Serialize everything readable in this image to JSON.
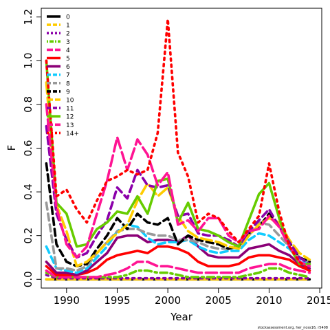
{
  "chart_data": {
    "type": "line",
    "xlabel": "Year",
    "ylabel": "F",
    "xlim": [
      1987.5,
      2015.2
    ],
    "ylim": [
      -0.04,
      1.24
    ],
    "x_ticks": [
      1990,
      1995,
      2000,
      2005,
      2010,
      2015
    ],
    "y_ticks": [
      0.0,
      0.2,
      0.4,
      0.6,
      0.8,
      1.0,
      1.2
    ],
    "x_tick_labels": [
      "1990",
      "1995",
      "2000",
      "2005",
      "2010",
      "2015"
    ],
    "y_tick_labels": [
      "0.0",
      "0.2",
      "0.4",
      "0.6",
      "0.8",
      "1.0",
      "1.2"
    ],
    "legend_position": "top-left",
    "credit": "stockassessment.org, her_noss16, r5408",
    "years": [
      1988,
      1989,
      1990,
      1991,
      1992,
      1993,
      1994,
      1995,
      1996,
      1997,
      1998,
      1999,
      2000,
      2001,
      2002,
      2003,
      2004,
      2005,
      2006,
      2007,
      2008,
      2009,
      2010,
      2011,
      2012,
      2013,
      2014
    ],
    "series": [
      {
        "name": "0",
        "color": "#000000",
        "dash": "solid",
        "values": [
          0.0,
          0.0,
          0.0,
          0.0,
          0.0,
          0.0,
          0.0,
          0.0,
          0.0,
          0.0,
          0.0,
          0.0,
          0.0,
          0.0,
          0.0,
          0.0,
          0.0,
          0.0,
          0.0,
          0.0,
          0.0,
          0.0,
          0.0,
          0.0,
          0.0,
          0.0,
          0.0
        ]
      },
      {
        "name": "1",
        "color": "#ffcc00",
        "dash": "dashed",
        "values": [
          0.0,
          0.0,
          0.0,
          0.0,
          0.0,
          0.0,
          0.0,
          0.0,
          0.0,
          0.0,
          0.0,
          0.0,
          0.0,
          0.0,
          0.0,
          0.0,
          0.0,
          0.0,
          0.0,
          0.0,
          0.0,
          0.0,
          0.0,
          0.0,
          0.0,
          0.0,
          0.0
        ]
      },
      {
        "name": "2",
        "color": "#8b00aa",
        "dash": "dotted",
        "values": [
          0.02,
          0.005,
          0.005,
          0.005,
          0.005,
          0.005,
          0.005,
          0.005,
          0.005,
          0.005,
          0.005,
          0.005,
          0.005,
          0.005,
          0.005,
          0.005,
          0.005,
          0.005,
          0.005,
          0.005,
          0.005,
          0.005,
          0.005,
          0.005,
          0.005,
          0.005,
          0.005
        ]
      },
      {
        "name": "3",
        "color": "#66cc00",
        "dash": "dotdash",
        "values": [
          0.03,
          0.01,
          0.01,
          0.01,
          0.01,
          0.01,
          0.01,
          0.01,
          0.02,
          0.04,
          0.04,
          0.03,
          0.03,
          0.02,
          0.01,
          0.01,
          0.01,
          0.01,
          0.01,
          0.01,
          0.02,
          0.03,
          0.05,
          0.05,
          0.03,
          0.02,
          0.01
        ]
      },
      {
        "name": "4",
        "color": "#ff1493",
        "dash": "longdash",
        "values": [
          0.04,
          0.01,
          0.01,
          0.01,
          0.01,
          0.01,
          0.02,
          0.03,
          0.05,
          0.08,
          0.08,
          0.06,
          0.06,
          0.05,
          0.04,
          0.03,
          0.03,
          0.03,
          0.03,
          0.03,
          0.05,
          0.06,
          0.07,
          0.07,
          0.05,
          0.04,
          0.03
        ]
      },
      {
        "name": "5",
        "color": "#ff0000",
        "dash": "solid",
        "values": [
          0.06,
          0.02,
          0.02,
          0.02,
          0.03,
          0.05,
          0.09,
          0.11,
          0.12,
          0.13,
          0.12,
          0.15,
          0.15,
          0.14,
          0.12,
          0.08,
          0.06,
          0.06,
          0.06,
          0.07,
          0.1,
          0.11,
          0.11,
          0.1,
          0.09,
          0.06,
          0.04
        ]
      },
      {
        "name": "6",
        "color": "#8b0077",
        "dash": "solid",
        "values": [
          0.08,
          0.03,
          0.03,
          0.02,
          0.04,
          0.08,
          0.12,
          0.19,
          0.2,
          0.2,
          0.17,
          0.18,
          0.18,
          0.17,
          0.2,
          0.15,
          0.11,
          0.1,
          0.1,
          0.1,
          0.14,
          0.15,
          0.16,
          0.13,
          0.11,
          0.07,
          0.05
        ]
      },
      {
        "name": "7",
        "color": "#11ccff",
        "dash": "dashed",
        "values": [
          0.15,
          0.05,
          0.04,
          0.03,
          0.05,
          0.1,
          0.15,
          0.22,
          0.25,
          0.24,
          0.19,
          0.16,
          0.17,
          0.17,
          0.18,
          0.15,
          0.13,
          0.12,
          0.13,
          0.13,
          0.18,
          0.21,
          0.2,
          0.17,
          0.14,
          0.09,
          0.07
        ]
      },
      {
        "name": "8",
        "color": "#999999",
        "dash": "dashed",
        "values": [
          0.35,
          0.05,
          0.05,
          0.04,
          0.06,
          0.12,
          0.17,
          0.22,
          0.23,
          0.23,
          0.21,
          0.2,
          0.2,
          0.18,
          0.18,
          0.17,
          0.15,
          0.14,
          0.14,
          0.15,
          0.2,
          0.26,
          0.25,
          0.2,
          0.15,
          0.1,
          0.08
        ]
      },
      {
        "name": "9",
        "color": "#000000",
        "dash": "dashed",
        "values": [
          0.53,
          0.16,
          0.08,
          0.06,
          0.07,
          0.14,
          0.2,
          0.28,
          0.23,
          0.3,
          0.26,
          0.25,
          0.28,
          0.16,
          0.2,
          0.18,
          0.17,
          0.16,
          0.14,
          0.15,
          0.21,
          0.24,
          0.3,
          0.24,
          0.17,
          0.1,
          0.08
        ]
      },
      {
        "name": "10",
        "color": "#ffcc00",
        "dash": "longdash",
        "values": [
          0.9,
          0.34,
          0.22,
          0.06,
          0.08,
          0.12,
          0.17,
          0.21,
          0.25,
          0.36,
          0.44,
          0.38,
          0.42,
          0.29,
          0.22,
          0.19,
          0.18,
          0.17,
          0.15,
          0.14,
          0.2,
          0.25,
          0.28,
          0.26,
          0.18,
          0.12,
          0.09
        ]
      },
      {
        "name": "11",
        "color": "#8b00aa",
        "dash": "dashed",
        "values": [
          0.7,
          0.3,
          0.18,
          0.1,
          0.12,
          0.2,
          0.27,
          0.42,
          0.37,
          0.5,
          0.43,
          0.42,
          0.43,
          0.29,
          0.3,
          0.21,
          0.2,
          0.2,
          0.18,
          0.15,
          0.22,
          0.27,
          0.32,
          0.24,
          0.17,
          0.1,
          0.07
        ]
      },
      {
        "name": "12",
        "color": "#66cc00",
        "dash": "solid",
        "values": [
          1.0,
          0.35,
          0.3,
          0.15,
          0.16,
          0.23,
          0.26,
          0.31,
          0.3,
          0.38,
          0.3,
          0.45,
          0.46,
          0.26,
          0.35,
          0.23,
          0.22,
          0.2,
          0.17,
          0.15,
          0.27,
          0.39,
          0.44,
          0.28,
          0.15,
          0.07,
          0.07
        ]
      },
      {
        "name": "13",
        "color": "#ff1493",
        "dash": "longdash",
        "values": [
          0.8,
          0.33,
          0.16,
          0.1,
          0.15,
          0.3,
          0.45,
          0.65,
          0.5,
          0.64,
          0.57,
          0.43,
          0.49,
          0.25,
          0.27,
          0.22,
          0.28,
          0.28,
          0.2,
          0.17,
          0.22,
          0.23,
          0.29,
          0.24,
          0.15,
          0.08,
          0.06
        ]
      },
      {
        "name": "14+",
        "color": "#ff0000",
        "dash": "dotted",
        "values": [
          1.0,
          0.38,
          0.41,
          0.32,
          0.26,
          0.36,
          0.45,
          0.47,
          0.5,
          0.48,
          0.5,
          0.67,
          1.19,
          0.58,
          0.47,
          0.26,
          0.3,
          0.28,
          0.22,
          0.17,
          0.23,
          0.29,
          0.53,
          0.31,
          0.15,
          0.08,
          0.04
        ]
      }
    ]
  }
}
